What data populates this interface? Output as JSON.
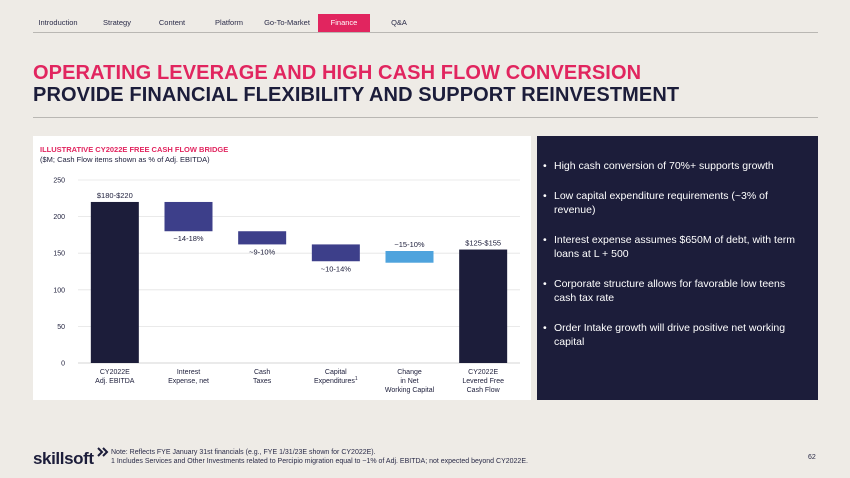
{
  "nav": {
    "items": [
      "Introduction",
      "Strategy",
      "Content",
      "Platform",
      "Go-To-Market",
      "Finance",
      "Q&A"
    ],
    "active": "Finance"
  },
  "title": {
    "line1": "OPERATING LEVERAGE AND HIGH CASH FLOW CONVERSION",
    "line2": "PROVIDE FINANCIAL FLEXIBILITY AND SUPPORT REINVESTMENT"
  },
  "chart_data": {
    "type": "bar",
    "subtype": "waterfall",
    "title": "ILLUSTRATIVE CY2022E FREE CASH FLOW BRIDGE",
    "subtitle": "($M; Cash Flow items shown as % of Adj. EBITDA)",
    "ylim": [
      0,
      250
    ],
    "yticks": [
      0,
      50,
      100,
      150,
      200,
      250
    ],
    "grid": true,
    "categories": [
      [
        "CY2022E",
        "Adj. EBITDA"
      ],
      [
        "Interest",
        "Expense, net"
      ],
      [
        "Cash",
        "Taxes"
      ],
      [
        "Capital",
        "Expenditures"
      ],
      [
        "Change",
        "in Net",
        "Working Capital"
      ],
      [
        "CY2022E",
        "Levered Free",
        "Cash Flow"
      ]
    ],
    "category_superscripts": [
      "",
      "",
      "",
      "1",
      "",
      ""
    ],
    "bars": [
      {
        "start": 0,
        "end": 220,
        "label": "$180-$220",
        "label_pos": "above",
        "color": "#1c1d3a"
      },
      {
        "start": 220,
        "end": 180,
        "label": "~14-18%",
        "label_pos": "below",
        "color": "#3d3f8a"
      },
      {
        "start": 180,
        "end": 162,
        "label": "~9-10%",
        "label_pos": "below",
        "color": "#3d3f8a"
      },
      {
        "start": 162,
        "end": 139,
        "label": "~10-14%",
        "label_pos": "below",
        "color": "#3d3f8a"
      },
      {
        "start": 153,
        "end": 137,
        "label": "~15-10%",
        "label_pos": "above",
        "color": "#4ea3dd"
      },
      {
        "start": 0,
        "end": 155,
        "label": "$125-$155",
        "label_pos": "above",
        "color": "#1c1d3a"
      }
    ]
  },
  "bullets": [
    "High cash conversion of 70%+ supports growth",
    "Low capital expenditure requirements (~3% of revenue)",
    "Interest expense assumes $650M of debt, with term loans at L + 500",
    "Corporate structure allows for favorable low teens cash tax rate",
    "Order Intake growth will drive positive net working capital"
  ],
  "logo": {
    "text": "skillsoft",
    "mark": "chevron-logo-icon"
  },
  "note": {
    "line1": "Note: Reflects FYE January 31st financials (e.g., FYE 1/31/23E shown for CY2022E).",
    "line2": "1 Includes Services and Other Investments related to Percipio migration equal to ~1% of Adj. EBITDA; not expected beyond CY2022E."
  },
  "page_number": "62",
  "colors": {
    "accent": "#e1255f",
    "navy": "#1c1d3a",
    "bridge": "#3d3f8a",
    "light_blue": "#4ea3dd",
    "background": "#eeebe6"
  }
}
